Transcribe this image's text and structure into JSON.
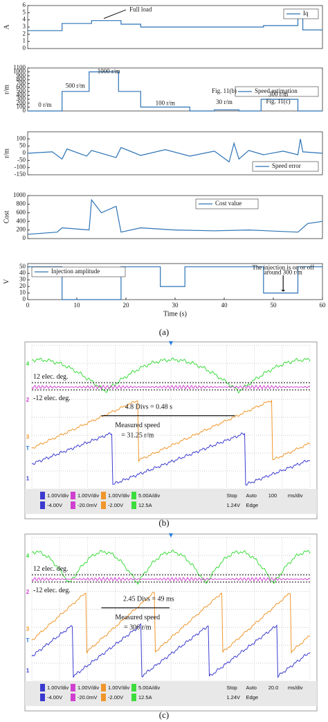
{
  "chart_data": [
    {
      "type": "line",
      "ylabel": "A",
      "xlim": [
        0,
        60
      ],
      "ylim": [
        0,
        6
      ],
      "yticks": [
        0,
        1,
        2,
        3,
        4,
        5,
        6
      ],
      "legend": "upper right",
      "x": [
        0,
        7,
        7,
        13,
        13,
        19,
        19,
        23,
        23,
        48,
        48,
        55,
        55,
        56,
        56,
        60
      ],
      "series": [
        {
          "name": "Iq",
          "color": "#2b72b5",
          "values": [
            2.5,
            2.5,
            3.5,
            3.5,
            3.9,
            3.9,
            3.4,
            3.4,
            3.0,
            3.0,
            3.2,
            3.2,
            4.8,
            4.8,
            2.6,
            2.6
          ]
        }
      ],
      "annotations": [
        "Full load"
      ]
    },
    {
      "type": "line",
      "ylabel": "r/m",
      "xlim": [
        0,
        60
      ],
      "ylim": [
        0,
        1100
      ],
      "yticks": [
        0,
        100,
        200,
        300,
        400,
        500,
        600,
        700,
        800,
        900,
        1000,
        1100
      ],
      "legend": "center right",
      "x": [
        0,
        7,
        7,
        12.5,
        12.5,
        18.5,
        18.5,
        23,
        23,
        33,
        33,
        38,
        38,
        43,
        43,
        47.5,
        47.5,
        55,
        55,
        60
      ],
      "series": [
        {
          "name": "Speed estimation",
          "color": "#2b72b5",
          "values": [
            0,
            0,
            500,
            500,
            1000,
            1000,
            500,
            500,
            100,
            100,
            0,
            0,
            30,
            30,
            0,
            0,
            300,
            300,
            0,
            0
          ]
        }
      ],
      "annotations": [
        "0 r/m",
        "500 r/m",
        "1000 r/m",
        "100 r/m",
        "30 r/m",
        "Fig. 11(b)",
        "300 r/m",
        "Fig. 11(c)"
      ]
    },
    {
      "type": "line",
      "ylabel": "r/m",
      "xlim": [
        0,
        60
      ],
      "ylim": [
        -150,
        150
      ],
      "yticks": [
        -150,
        -100,
        -50,
        0,
        50,
        100
      ],
      "legend": "lower right",
      "x": [
        0,
        5,
        7,
        8,
        12,
        13,
        18,
        19,
        23,
        28,
        33,
        38,
        41,
        42,
        43,
        45,
        48,
        52,
        55,
        55.5,
        56,
        60
      ],
      "series": [
        {
          "name": "Speed error",
          "color": "#2b72b5",
          "values": [
            0,
            10,
            -40,
            30,
            -20,
            20,
            -30,
            40,
            -15,
            25,
            -20,
            15,
            -60,
            70,
            -40,
            20,
            -10,
            15,
            -10,
            100,
            10,
            0
          ]
        }
      ]
    },
    {
      "type": "line",
      "ylabel": "Cost",
      "xlim": [
        0,
        60
      ],
      "ylim": [
        0,
        1000
      ],
      "yticks": [
        0,
        200,
        400,
        600,
        800,
        1000
      ],
      "legend": "upper center",
      "x": [
        0,
        6,
        7,
        12.5,
        13,
        15,
        18,
        19,
        23,
        30,
        38,
        45,
        55,
        57,
        60
      ],
      "series": [
        {
          "name": "Cost value",
          "color": "#2b72b5",
          "values": [
            100,
            150,
            250,
            200,
            900,
            600,
            750,
            150,
            250,
            200,
            180,
            200,
            150,
            350,
            400
          ]
        }
      ]
    },
    {
      "type": "line",
      "ylabel": "V",
      "xlabel": "Time (s)",
      "xlim": [
        0,
        60
      ],
      "ylim": [
        0,
        55
      ],
      "yticks": [
        0,
        10,
        20,
        30,
        40,
        50
      ],
      "xticks": [
        0,
        10,
        20,
        30,
        40,
        50,
        60
      ],
      "legend": "upper left",
      "x": [
        0,
        7,
        7,
        19,
        19,
        27,
        27,
        32,
        32,
        48,
        48,
        55,
        55,
        60
      ],
      "series": [
        {
          "name": "Injection amplitude",
          "color": "#2b72b5",
          "values": [
            50,
            50,
            0,
            0,
            50,
            50,
            20,
            20,
            50,
            50,
            10,
            10,
            50,
            50
          ]
        }
      ],
      "annotations": [
        "The injection is on or off",
        "around 300 r/m"
      ]
    }
  ],
  "caption_a": "(a)",
  "scopes": [
    {
      "caption": "(b)",
      "annotations": [
        "12 elec. deg.",
        "-12 elec. deg.",
        "4.8 Divs = 0.48 s",
        "Measured speed",
        "= 31.25 r/m"
      ],
      "markers": [
        "4",
        "2",
        "3",
        "T",
        "1"
      ],
      "status": [
        "1.00V/div",
        "1.00V/div",
        "1.00V/div",
        "5.00A/div",
        "-4.00V",
        "-20.0mV",
        "-2.00V",
        "12.5A"
      ],
      "run": [
        "Stop",
        "Auto",
        "100",
        "ms/div",
        "1.24V",
        "Edge"
      ]
    },
    {
      "caption": "(c)",
      "annotations": [
        "12 elec. deg.",
        "-12 elec. deg.",
        "2.45 Divs = 49 ms",
        "Measured speed",
        "= 306 r/m"
      ],
      "markers": [
        "4",
        "2",
        "3",
        "T",
        "1"
      ],
      "status": [
        "1.00V/div",
        "1.00V/div",
        "1.00V/div",
        "5.00A/div",
        "-4.00V",
        "-20.0mV",
        "-2.00V",
        "12.5A"
      ],
      "run": [
        "Stop",
        "Auto",
        "20.0",
        "ms/div",
        "1.24V",
        "Edge"
      ]
    }
  ]
}
